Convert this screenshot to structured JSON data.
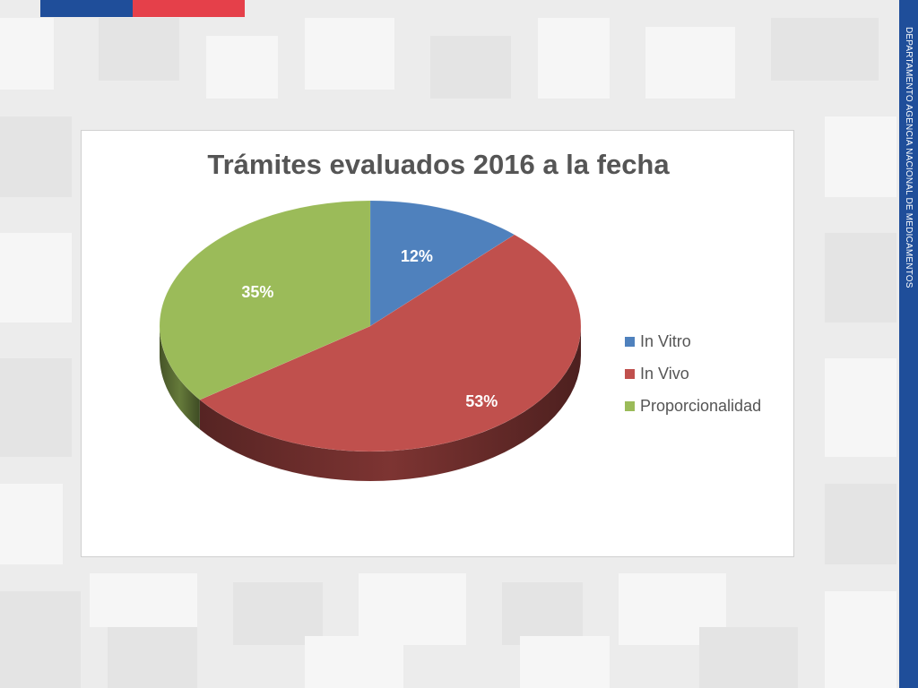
{
  "slide": {
    "side_text": "DEPARTAMENTO AGENCIA NACIONAL DE MEDICAMENTOS",
    "colors": {
      "flag_blue": "#1f4e9a",
      "flag_red": "#e5404a",
      "side_band": "#1f4e9a"
    }
  },
  "chart_data": {
    "type": "pie",
    "title": "Trámites evaluados 2016 a la fecha",
    "categories": [
      "In Vitro",
      "In Vivo",
      "Proporcionalidad"
    ],
    "values": [
      12,
      53,
      35
    ],
    "labels": [
      "12%",
      "53%",
      "35%"
    ],
    "colors": [
      "#4f81bd",
      "#c0504d",
      "#9bbb59"
    ],
    "legend": "right",
    "style": "3d"
  }
}
